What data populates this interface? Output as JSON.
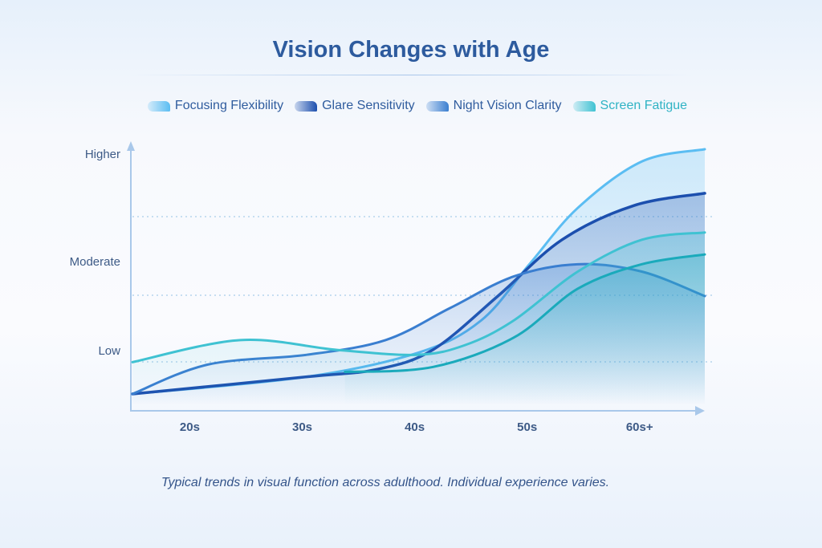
{
  "chart_data": {
    "type": "line",
    "title": "Vision Changes with Age",
    "caption": "Typical trends in visual function across adulthood. Individual experience varies.",
    "x_ticks": [
      {
        "label": "20s",
        "x": 25
      },
      {
        "label": "30s",
        "x": 35
      },
      {
        "label": "40s",
        "x": 45
      },
      {
        "label": "50s",
        "x": 55
      },
      {
        "label": "60s+",
        "x": 65
      }
    ],
    "y_ticks": [
      {
        "label": "Low",
        "y": 1.7
      },
      {
        "label": "Moderate",
        "y": 5.3
      },
      {
        "label": "Higher",
        "y": 9.7
      }
    ],
    "xlim": [
      19.9,
      70.8
    ],
    "ylim": [
      0,
      10
    ],
    "grid": true,
    "legend": "top",
    "series": [
      {
        "name": "Focusing Flexibility",
        "color": "#5bbdf2",
        "x": [
          19.9,
          35.4,
          45.4,
          50.9,
          55.2,
          59.5,
          65.2,
          70.8
        ],
        "y": [
          0,
          0.7,
          1.7,
          3.0,
          5.3,
          7.6,
          9.5,
          10
        ]
      },
      {
        "name": "Glare Sensitivity",
        "color": "#1c4fae",
        "x": [
          19.9,
          35.4,
          41.6,
          46.6,
          52.4,
          58.1,
          64.5,
          70.8
        ],
        "y": [
          0,
          0.7,
          1.0,
          1.8,
          4.0,
          6.3,
          7.7,
          8.2
        ]
      },
      {
        "name": "Night Vision Clarity",
        "color": "#3a7ed0",
        "x": [
          19.9,
          26.6,
          35.4,
          42.4,
          48.1,
          53.8,
          59.5,
          65.2,
          70.8
        ],
        "y": [
          0,
          1.2,
          1.6,
          2.2,
          3.5,
          4.8,
          5.3,
          5.0,
          4.0
        ]
      },
      {
        "name": "Screen Fatigue",
        "color": "#3fc2d2",
        "x": [
          19.9,
          29.5,
          38.1,
          45.2,
          49.5,
          53.8,
          59.5,
          65.2,
          70.8
        ],
        "y": [
          1.3,
          2.2,
          1.8,
          1.6,
          2.0,
          3.0,
          5.0,
          6.3,
          6.6
        ]
      },
      {
        "color": "#1aaabb",
        "x": [
          38.8,
          46.6,
          53.8,
          59.5,
          65.2,
          70.8
        ],
        "y": [
          0.9,
          1.1,
          2.3,
          4.3,
          5.3,
          5.7
        ]
      }
    ]
  }
}
